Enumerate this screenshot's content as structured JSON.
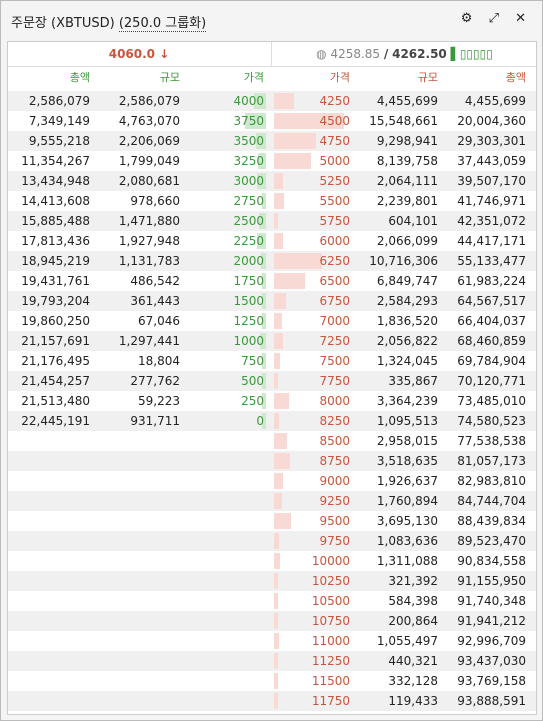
{
  "header": {
    "title": "주문장 (XBTUSD)",
    "grouping": "(250.0 그룹화)"
  },
  "ticker": {
    "last_price": "4060.0",
    "index_price": "4258.85",
    "separator": "/",
    "mark_price": "4262.50"
  },
  "columns": {
    "bids": [
      "총액",
      "규모",
      "가격"
    ],
    "asks": [
      "가격",
      "규모",
      "총액"
    ]
  },
  "bids": [
    [
      "2,586,079",
      "2,586,079",
      "4000"
    ],
    [
      "7,349,149",
      "4,763,070",
      "3750"
    ],
    [
      "9,555,218",
      "2,206,069",
      "3500"
    ],
    [
      "11,354,267",
      "1,799,049",
      "3250"
    ],
    [
      "13,434,948",
      "2,080,681",
      "3000"
    ],
    [
      "14,413,608",
      "978,660",
      "2750"
    ],
    [
      "15,885,488",
      "1,471,880",
      "2500"
    ],
    [
      "17,813,436",
      "1,927,948",
      "2250"
    ],
    [
      "18,945,219",
      "1,131,783",
      "2000"
    ],
    [
      "19,431,761",
      "486,542",
      "1750"
    ],
    [
      "19,793,204",
      "361,443",
      "1500"
    ],
    [
      "19,860,250",
      "67,046",
      "1250"
    ],
    [
      "21,157,691",
      "1,297,441",
      "1000"
    ],
    [
      "21,176,495",
      "18,804",
      "750"
    ],
    [
      "21,454,257",
      "277,762",
      "500"
    ],
    [
      "21,513,480",
      "59,223",
      "250"
    ],
    [
      "22,445,191",
      "931,711",
      "0"
    ]
  ],
  "asks": [
    [
      "4250",
      "4,455,699",
      "4,455,699"
    ],
    [
      "4500",
      "15,548,661",
      "20,004,360"
    ],
    [
      "4750",
      "9,298,941",
      "29,303,301"
    ],
    [
      "5000",
      "8,139,758",
      "37,443,059"
    ],
    [
      "5250",
      "2,064,111",
      "39,507,170"
    ],
    [
      "5500",
      "2,239,801",
      "41,746,971"
    ],
    [
      "5750",
      "604,101",
      "42,351,072"
    ],
    [
      "6000",
      "2,066,099",
      "44,417,171"
    ],
    [
      "6250",
      "10,716,306",
      "55,133,477"
    ],
    [
      "6500",
      "6,849,747",
      "61,983,224"
    ],
    [
      "6750",
      "2,584,293",
      "64,567,517"
    ],
    [
      "7000",
      "1,836,520",
      "66,404,037"
    ],
    [
      "7250",
      "2,056,822",
      "68,460,859"
    ],
    [
      "7500",
      "1,324,045",
      "69,784,904"
    ],
    [
      "7750",
      "335,867",
      "70,120,771"
    ],
    [
      "8000",
      "3,364,239",
      "73,485,010"
    ],
    [
      "8250",
      "1,095,513",
      "74,580,523"
    ],
    [
      "8500",
      "2,958,015",
      "77,538,538"
    ],
    [
      "8750",
      "3,518,635",
      "81,057,173"
    ],
    [
      "9000",
      "1,926,637",
      "82,983,810"
    ],
    [
      "9250",
      "1,760,894",
      "84,744,704"
    ],
    [
      "9500",
      "3,695,130",
      "88,439,834"
    ],
    [
      "9750",
      "1,083,636",
      "89,523,470"
    ],
    [
      "10000",
      "1,311,088",
      "90,834,558"
    ],
    [
      "10250",
      "321,392",
      "91,155,950"
    ],
    [
      "10500",
      "584,398",
      "91,740,348"
    ],
    [
      "10750",
      "200,864",
      "91,941,212"
    ],
    [
      "11000",
      "1,055,497",
      "92,996,709"
    ],
    [
      "11250",
      "440,321",
      "93,437,030"
    ],
    [
      "11500",
      "332,128",
      "93,769,158"
    ],
    [
      "11750",
      "119,433",
      "93,888,591"
    ]
  ]
}
